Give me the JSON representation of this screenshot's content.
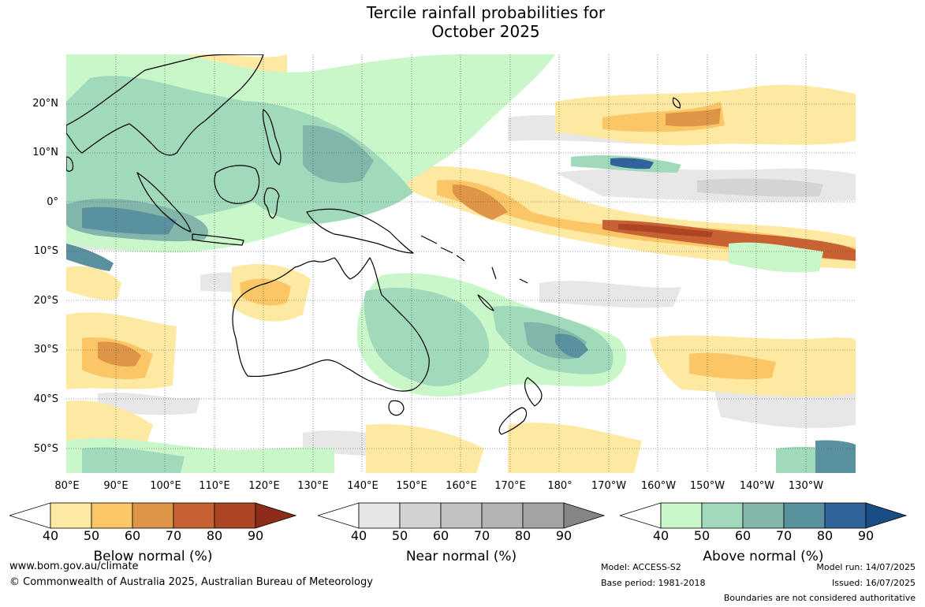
{
  "title_line1": "Tercile rainfall probabilities for",
  "title_line2": "October 2025",
  "lat_labels": [
    "20°N",
    "10°N",
    "0°",
    "10°S",
    "20°S",
    "30°S",
    "40°S",
    "50°S"
  ],
  "lon_labels": [
    "80°E",
    "90°E",
    "100°E",
    "110°E",
    "120°E",
    "130°E",
    "140°E",
    "150°E",
    "160°E",
    "170°E",
    "180°",
    "170°W",
    "160°W",
    "150°W",
    "140°W",
    "130°W"
  ],
  "colorbars": [
    {
      "name": "below",
      "title": "Below normal (%)",
      "ticks": [
        "40",
        "50",
        "60",
        "70",
        "80",
        "90"
      ],
      "colors": [
        "#fee9a3",
        "#fbc665",
        "#de9548",
        "#c96232",
        "#ad4424",
        "#8c2d1c"
      ]
    },
    {
      "name": "near",
      "title": "Near normal (%)",
      "ticks": [
        "40",
        "50",
        "60",
        "70",
        "80",
        "90"
      ],
      "colors": [
        "#e6e6e6",
        "#d2d2d2",
        "#c2c2c2",
        "#b3b3b3",
        "#a3a3a3",
        "#858585"
      ]
    },
    {
      "name": "above",
      "title": "Above normal (%)",
      "ticks": [
        "40",
        "50",
        "60",
        "70",
        "80",
        "90"
      ],
      "colors": [
        "#c9f7ca",
        "#a1d9bb",
        "#82b6ab",
        "#5a919f",
        "#30639a",
        "#184e85"
      ]
    }
  ],
  "footer": {
    "website": "www.bom.gov.au/climate",
    "copyright": "© Commonwealth of Australia 2025, Australian Bureau of Meteorology",
    "model": "Model: ACCESS-S2",
    "base_period": "Base period: 1981-2018",
    "model_run": "Model run: 14/07/2025",
    "issued": "Issued: 16/07/2025",
    "disclaimer": "Boundaries are not considered authoritative"
  }
}
